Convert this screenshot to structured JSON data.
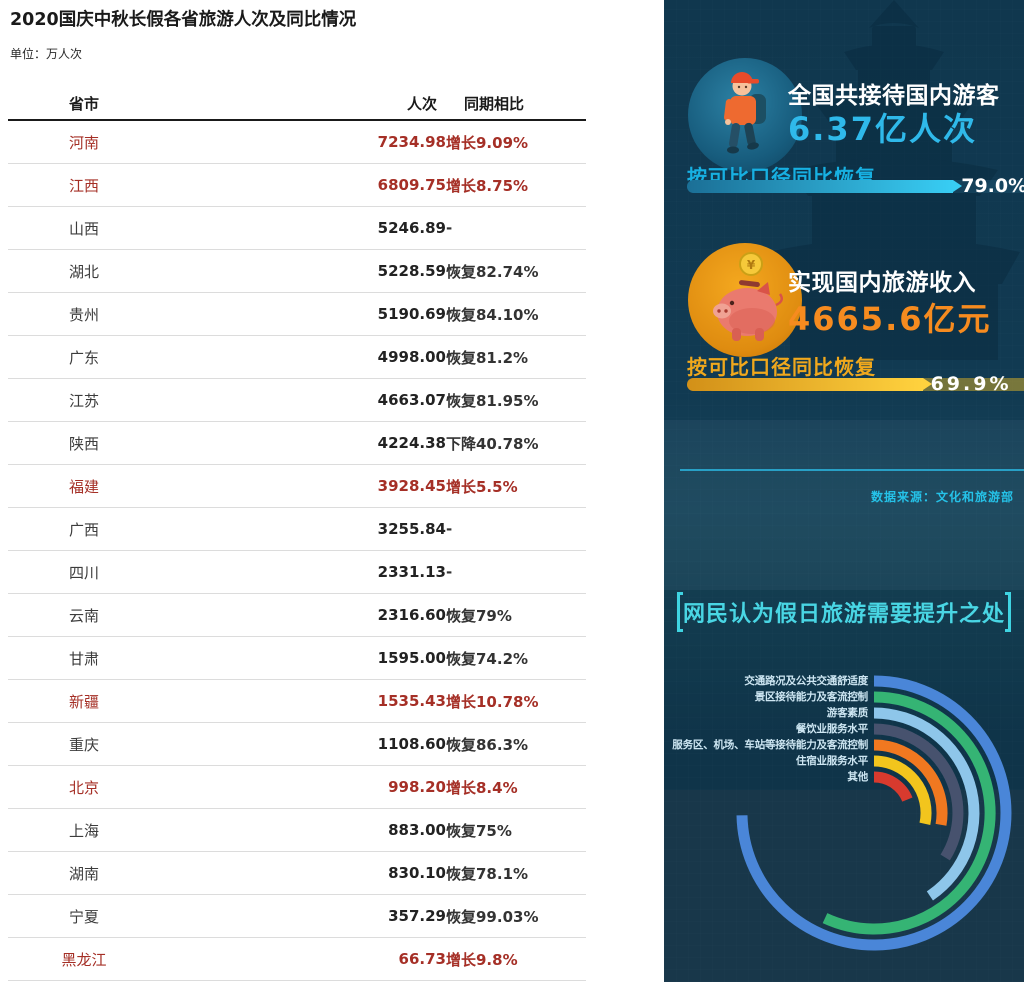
{
  "left_panel": {
    "title": "2020国庆中秋长假各省旅游人次及同比情况",
    "unit_label": "单位：万人次",
    "table": {
      "headers": [
        "省市",
        "人次",
        "同期相比"
      ]
    }
  },
  "right_panel": {
    "visitors_section": {
      "icon": "tourist-icon",
      "title": "全国共接待国内游客",
      "value": "6.37亿人次",
      "recovery_label": "按可比口径同比恢复",
      "percent_label": "79.0%",
      "accent_color": "#2fb9ea"
    },
    "income_section": {
      "icon": "piggy-bank-icon",
      "title": "实现国内旅游收入",
      "value": "4665.6亿元",
      "recovery_label": "按可比口径同比恢复",
      "percent_label": "69.9%",
      "accent_color": "#f68b1f"
    },
    "data_source": "数据来源：文化和旅游部",
    "chart_title": "网民认为假日旅游需要提升之处"
  },
  "chart_data": [
    {
      "type": "table",
      "title": "2020国庆中秋长假各省旅游人次及同比情况",
      "unit": "万人次",
      "columns": [
        "省市",
        "人次",
        "同期相比"
      ],
      "rows": [
        [
          "河南",
          "7234.98",
          "增长9.09%"
        ],
        [
          "江西",
          "6809.75",
          "增长8.75%"
        ],
        [
          "山西",
          "5246.89",
          "-"
        ],
        [
          "湖北",
          "5228.59",
          "恢复82.74%"
        ],
        [
          "贵州",
          "5190.69",
          "恢复84.10%"
        ],
        [
          "广东",
          "4998.00",
          "恢复81.2%"
        ],
        [
          "江苏",
          "4663.07",
          "恢复81.95%"
        ],
        [
          "陕西",
          "4224.38",
          "下降40.78%"
        ],
        [
          "福建",
          "3928.45",
          "增长5.5%"
        ],
        [
          "广西",
          "3255.84",
          "-"
        ],
        [
          "四川",
          "2331.13",
          "-"
        ],
        [
          "云南",
          "2316.60",
          "恢复79%"
        ],
        [
          "甘肃",
          "1595.00",
          "恢复74.2%"
        ],
        [
          "新疆",
          "1535.43",
          "增长10.78%"
        ],
        [
          "重庆",
          "1108.60",
          "恢复86.3%"
        ],
        [
          "北京",
          "998.20",
          "增长8.4%"
        ],
        [
          "上海",
          "883.00",
          "恢复75%"
        ],
        [
          "湖南",
          "830.10",
          "恢复78.1%"
        ],
        [
          "宁夏",
          "357.29",
          "恢复99.03%"
        ],
        [
          "黑龙江",
          "66.73",
          "增长9.8%"
        ]
      ]
    },
    {
      "type": "bar",
      "title": "全国共接待国内游客 6.37亿人次",
      "label": "按可比口径同比恢复",
      "value": 79.0,
      "max": 100,
      "color": "#38cdf4"
    },
    {
      "type": "bar",
      "title": "实现国内旅游收入 4665.6亿元",
      "label": "按可比口径同比恢复",
      "value": 69.9,
      "max": 100,
      "color": "#ffd23e"
    },
    {
      "type": "radial-bar",
      "title": "网民认为假日旅游需要提升之处",
      "categories": [
        "交通路况及公共交通舒适度",
        "景区接待能力及客流控制",
        "游客素质",
        "餐饮业服务水平",
        "服务区、机场、车站等接待能力及客流控制",
        "住宿业服务水平",
        "其他"
      ],
      "sweep_degrees": [
        269,
        205,
        146,
        122,
        100,
        102,
        68
      ],
      "angle_max": 360,
      "start_angle": "12-oclock",
      "direction": "clockwise",
      "colors": [
        "#4a86d8",
        "#35b474",
        "#8ec6ea",
        "#47526e",
        "#f07820",
        "#f2c51d",
        "#d83a2e"
      ]
    }
  ]
}
